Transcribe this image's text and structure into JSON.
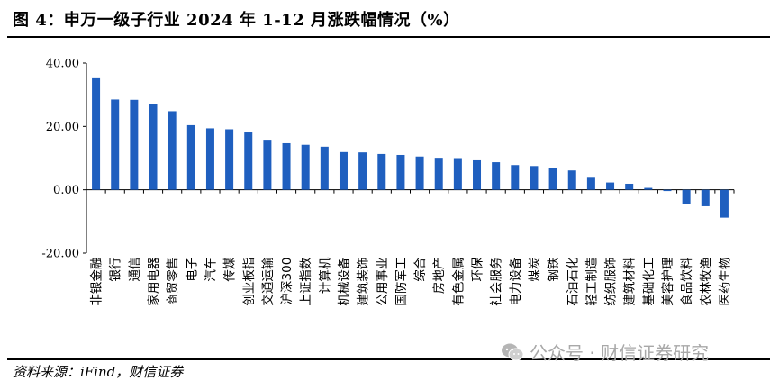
{
  "header": {
    "title": "图 4：申万一级子行业 2024 年 1-12 月涨跌幅情况（%）"
  },
  "footer": {
    "source": "资料来源：iFind，财信证券",
    "watermark": "公众号 · 财信证券研究"
  },
  "colors": {
    "bar": "#1f5fbf",
    "axis": "#000000"
  },
  "chart_data": {
    "type": "bar",
    "title": "",
    "xlabel": "",
    "ylabel": "",
    "ylim": [
      -20,
      40
    ],
    "yticks": [
      "40.00",
      "20.00",
      "0.00",
      "-20.00"
    ],
    "ytick_values": [
      40,
      20,
      0,
      -20
    ],
    "grid": false,
    "legend": "none",
    "categories": [
      "非银金融",
      "银行",
      "通信",
      "家用电器",
      "商贸零售",
      "电子",
      "汽车",
      "传媒",
      "创业板指",
      "交通运输",
      "沪深300",
      "上证指数",
      "计算机",
      "机械设备",
      "建筑装饰",
      "公用事业",
      "国防军工",
      "综合",
      "房地产",
      "有色金属",
      "环保",
      "社会服务",
      "电力设备",
      "煤炭",
      "钢铁",
      "石油石化",
      "轻工制造",
      "纺织服饰",
      "建筑材料",
      "基础化工",
      "美容护理",
      "食品饮料",
      "农林牧渔",
      "医药生物"
    ],
    "values": [
      35.2,
      28.5,
      28.4,
      27.0,
      24.8,
      20.4,
      19.4,
      19.1,
      18.1,
      15.8,
      14.7,
      14.2,
      13.6,
      11.9,
      11.8,
      11.3,
      11.0,
      10.5,
      10.1,
      10.0,
      9.3,
      8.7,
      7.8,
      7.5,
      6.9,
      6.1,
      3.8,
      2.3,
      1.9,
      0.6,
      -0.4,
      -4.6,
      -5.2,
      -8.8
    ]
  }
}
